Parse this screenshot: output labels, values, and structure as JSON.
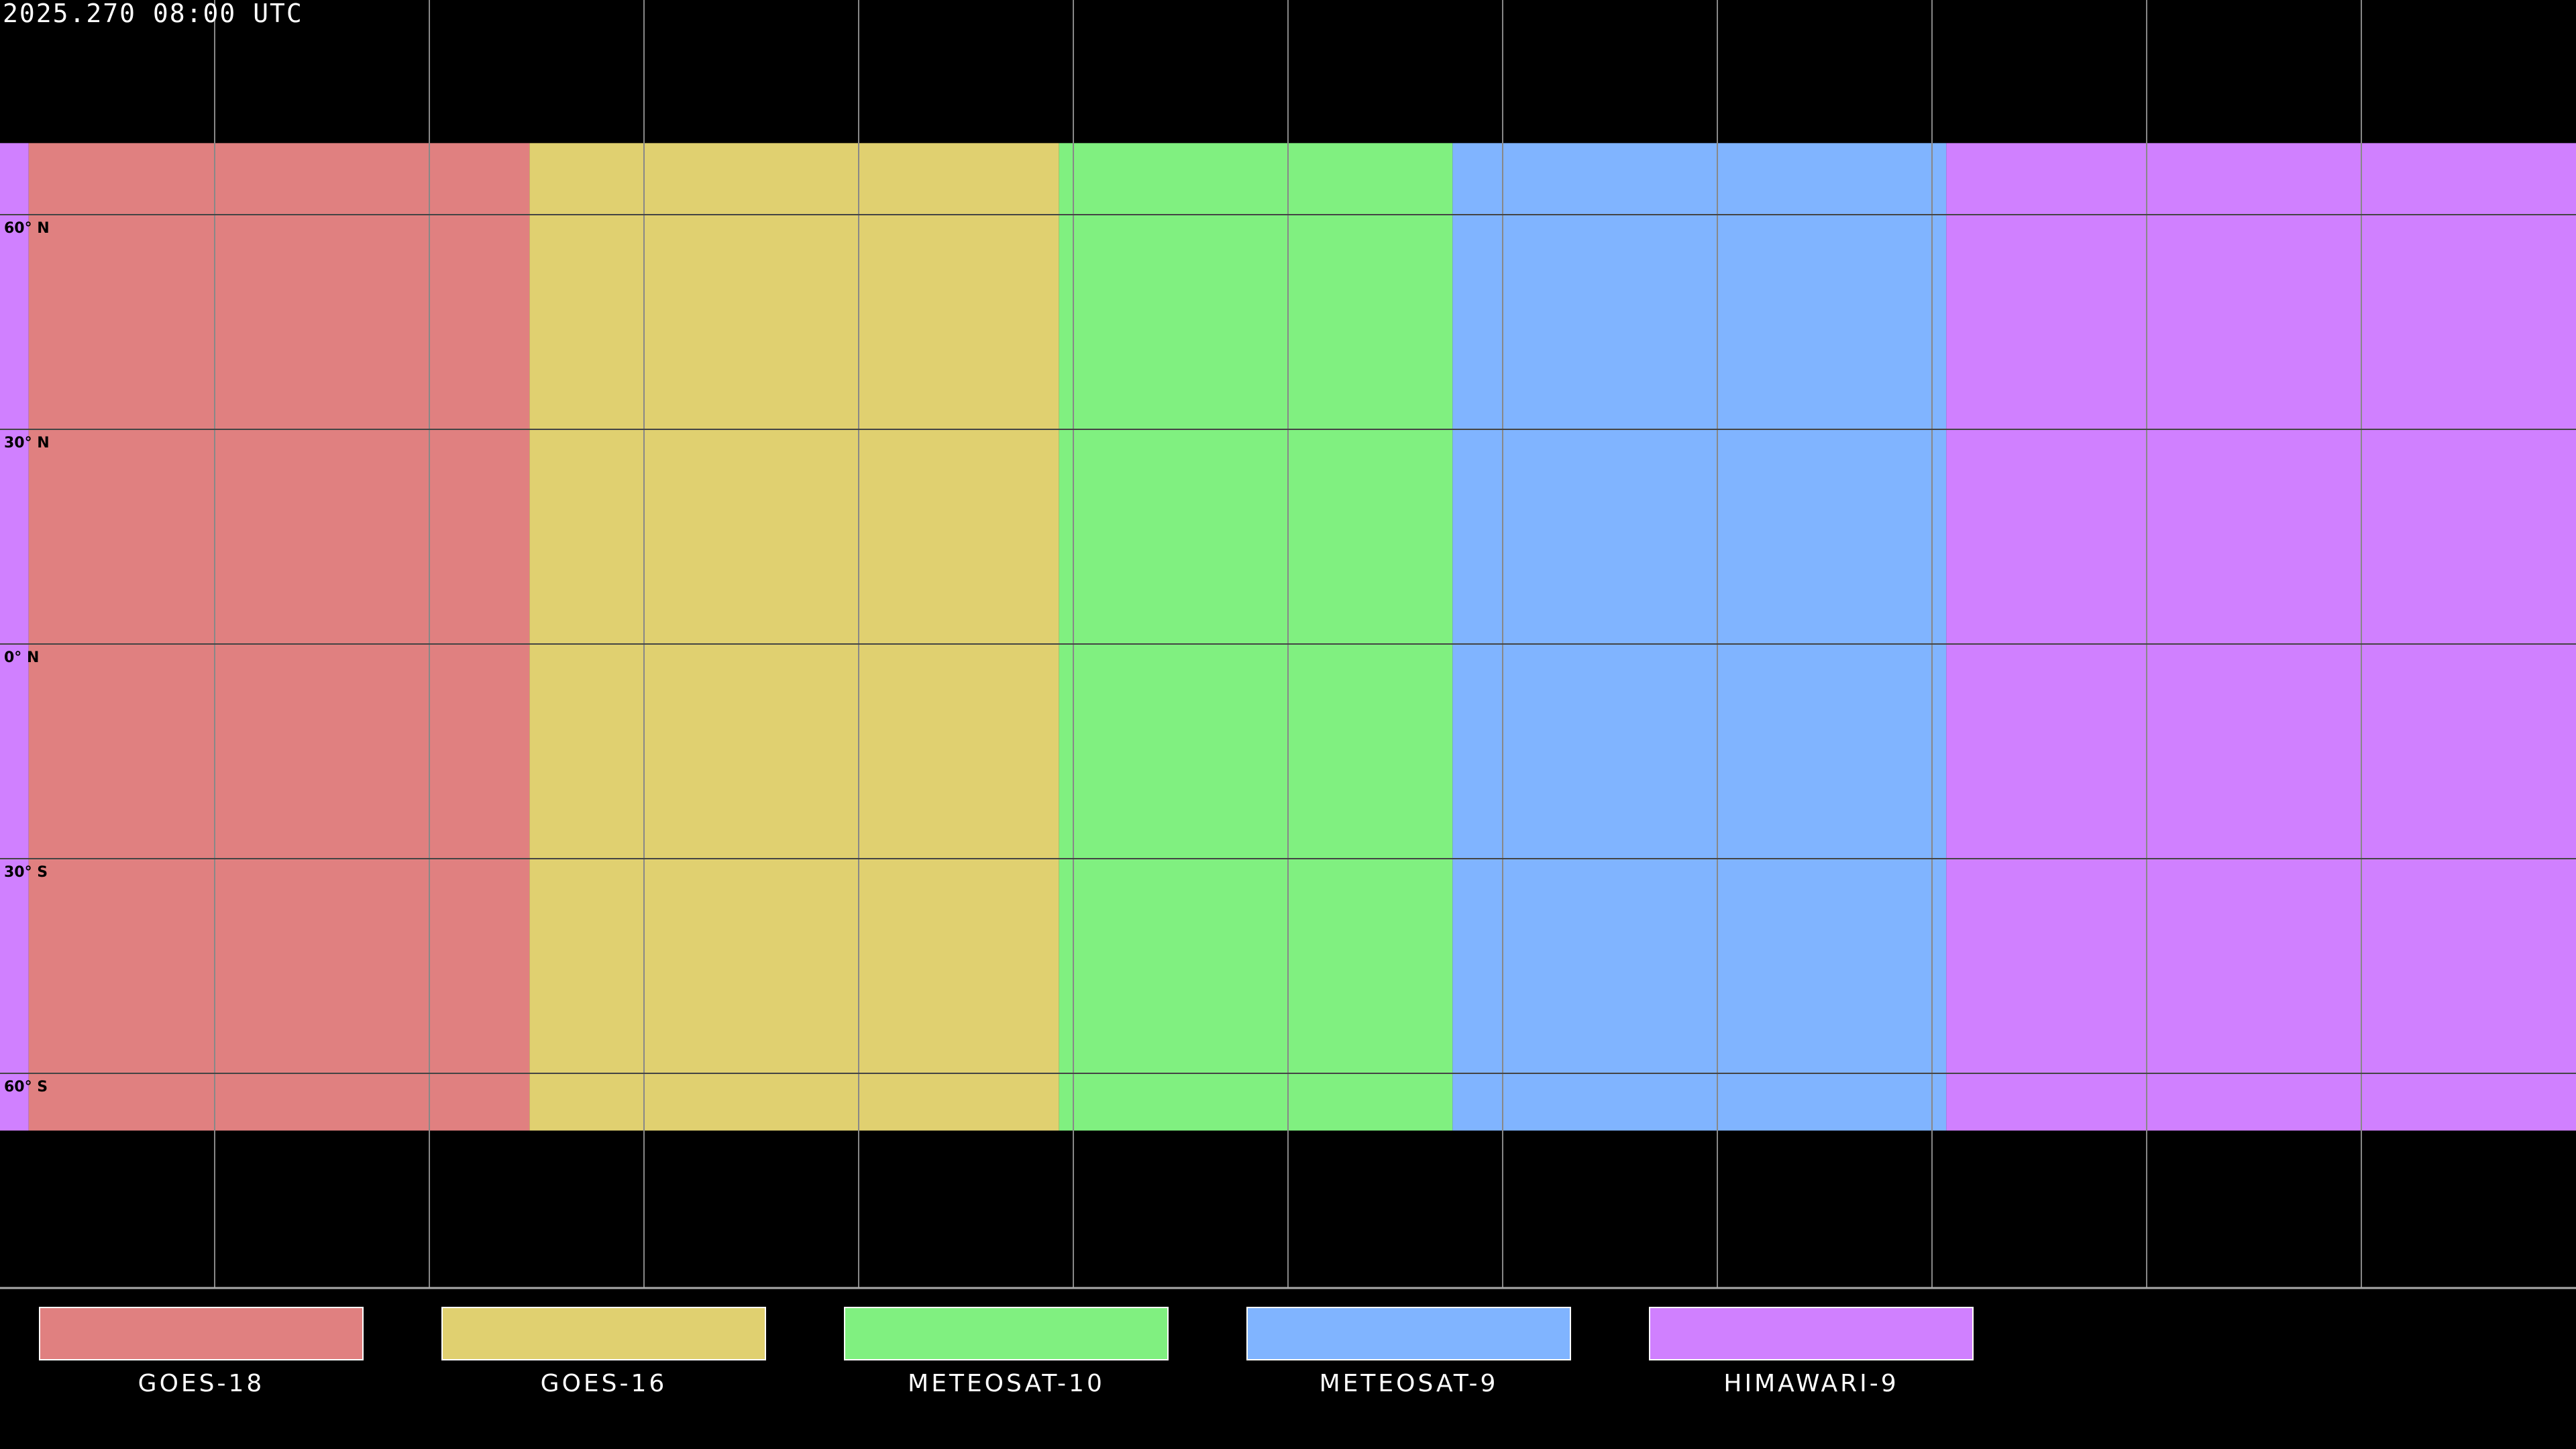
{
  "timestamp": "2025.270 08:00 UTC",
  "map": {
    "projection": "equirectangular",
    "graticule_step_deg": 30,
    "lat_labels": [
      "60° N",
      "30° N",
      "0° N",
      "30° S",
      "60° S"
    ],
    "lat_values": [
      60,
      30,
      0,
      -30,
      -60
    ]
  },
  "satellites": [
    {
      "name": "GOES-18",
      "color": "#e08080",
      "lon_range": [
        -176,
        -106
      ]
    },
    {
      "name": "GOES-16",
      "color": "#e0d070",
      "lon_range": [
        -106,
        -32
      ]
    },
    {
      "name": "METEOSAT-10",
      "color": "#80f080",
      "lon_range": [
        -32,
        23
      ]
    },
    {
      "name": "METEOSAT-9",
      "color": "#80b4ff",
      "lon_range": [
        23,
        92
      ]
    },
    {
      "name": "HIMAWARI-9",
      "color": "#d080ff",
      "lon_range": [
        92,
        184
      ]
    }
  ],
  "coverage_lat_range": [
    -68,
    70
  ]
}
